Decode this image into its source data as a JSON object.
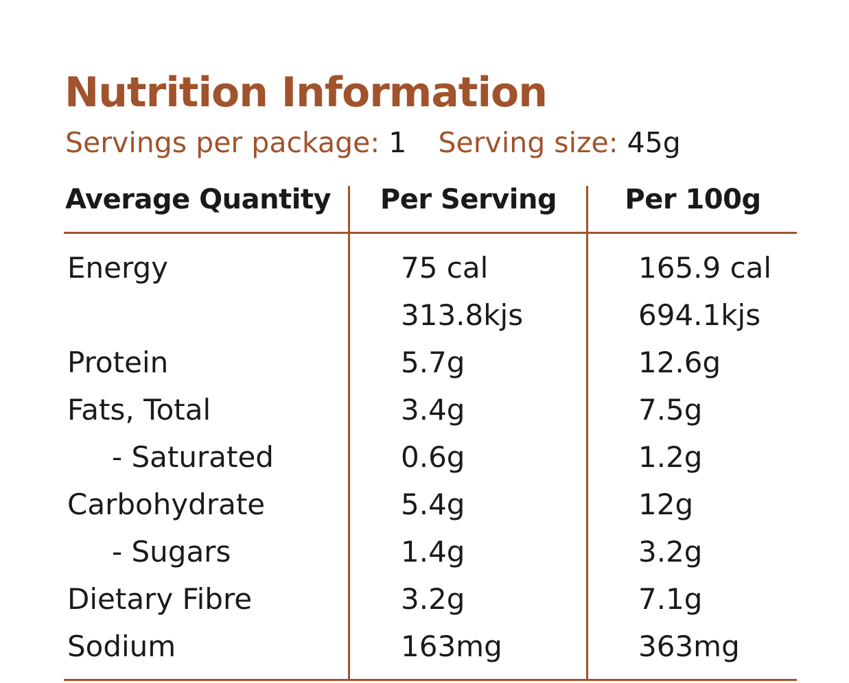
{
  "title": "Nutrition Information",
  "servings": {
    "per_package_label": "Servings per package:",
    "per_package_value": "1",
    "size_label": "Serving size:",
    "size_value": "45g"
  },
  "table": {
    "headers": [
      "Average Quantity",
      "Per Serving",
      "Per 100g"
    ],
    "rows": [
      {
        "label": "Energy",
        "per_serving": "75 cal",
        "per_100g": "165.9 cal",
        "indent": false
      },
      {
        "label": "",
        "per_serving": "313.8kjs",
        "per_100g": "694.1kjs",
        "indent": false
      },
      {
        "label": "Protein",
        "per_serving": "5.7g",
        "per_100g": "12.6g",
        "indent": false
      },
      {
        "label": "Fats, Total",
        "per_serving": "3.4g",
        "per_100g": "7.5g",
        "indent": false
      },
      {
        "label": "- Saturated",
        "per_serving": "0.6g",
        "per_100g": "1.2g",
        "indent": true
      },
      {
        "label": "Carbohydrate",
        "per_serving": "5.4g",
        "per_100g": "12g",
        "indent": false
      },
      {
        "label": "- Sugars",
        "per_serving": "1.4g",
        "per_100g": "3.2g",
        "indent": true
      },
      {
        "label": "Dietary Fibre",
        "per_serving": "3.2g",
        "per_100g": "7.1g",
        "indent": false
      },
      {
        "label": "Sodium",
        "per_serving": "163mg",
        "per_100g": "363mg",
        "indent": false
      }
    ]
  },
  "colors": {
    "accent": "#a0532c",
    "text": "#1a1a1a"
  }
}
